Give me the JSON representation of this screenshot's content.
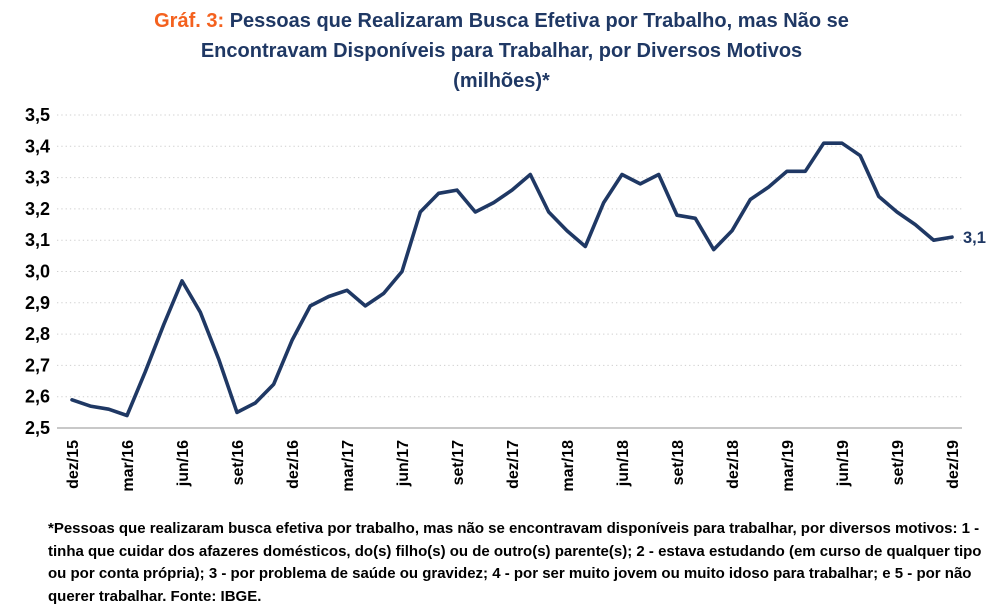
{
  "title": {
    "prefix": "Gráf. 3:",
    "line1_rest": " Pessoas que Realizaram Busca Efetiva por Trabalho, mas Não se",
    "line2": "Encontravam Disponíveis para Trabalhar, por Diversos Motivos",
    "line3": "(milhões)*"
  },
  "colors": {
    "title_accent": "#F4611E",
    "title_navy": "#1F3864",
    "line": "#1F3864",
    "gridline": "#CFCFCF",
    "axis_baseline": "#A6A6A6",
    "axis_text": "#000000",
    "end_label": "#1F3864"
  },
  "chart_data": {
    "type": "line",
    "title": "Gráf. 3: Pessoas que Realizaram Busca Efetiva por Trabalho, mas Não se Encontravam Disponíveis para Trabalhar, por Diversos Motivos (milhões)*",
    "frequency": "monthly (labels shown quarterly)",
    "n_points": 49,
    "values": [
      2.59,
      2.57,
      2.56,
      2.54,
      2.68,
      2.83,
      2.97,
      2.87,
      2.72,
      2.55,
      2.58,
      2.64,
      2.78,
      2.89,
      2.92,
      2.94,
      2.89,
      2.93,
      3.0,
      3.19,
      3.25,
      3.26,
      3.19,
      3.22,
      3.26,
      3.31,
      3.19,
      3.13,
      3.08,
      3.22,
      3.31,
      3.28,
      3.31,
      3.18,
      3.17,
      3.07,
      3.13,
      3.23,
      3.27,
      3.32,
      3.32,
      3.41,
      3.41,
      3.37,
      3.24,
      3.19,
      3.15,
      3.1,
      3.11
    ],
    "x_tick_labels": [
      "dez/15",
      "mar/16",
      "jun/16",
      "set/16",
      "dez/16",
      "mar/17",
      "jun/17",
      "set/17",
      "dez/17",
      "mar/18",
      "jun/18",
      "set/18",
      "dez/18",
      "mar/19",
      "jun/19",
      "set/19",
      "dez/19"
    ],
    "x_tick_every": 3,
    "ylim": [
      2.5,
      3.5
    ],
    "y_tick_step": 0.1,
    "decimal_separator": ",",
    "grid": "horizontal-dotted",
    "legend": "none",
    "end_label": "3,1"
  },
  "footnote": {
    "text": "*Pessoas que realizaram busca efetiva por trabalho, mas não se encontravam disponíveis para trabalhar, por diversos motivos: 1 - tinha que cuidar dos afazeres domésticos, do(s) filho(s) ou de outro(s) parente(s); 2 - estava estudando (em curso de qualquer tipo ou por conta própria); 3 - por problema de saúde ou gravidez; 4 - por ser muito jovem ou muito idoso para trabalhar; e 5 - por não querer trabalhar. Fonte: IBGE."
  }
}
